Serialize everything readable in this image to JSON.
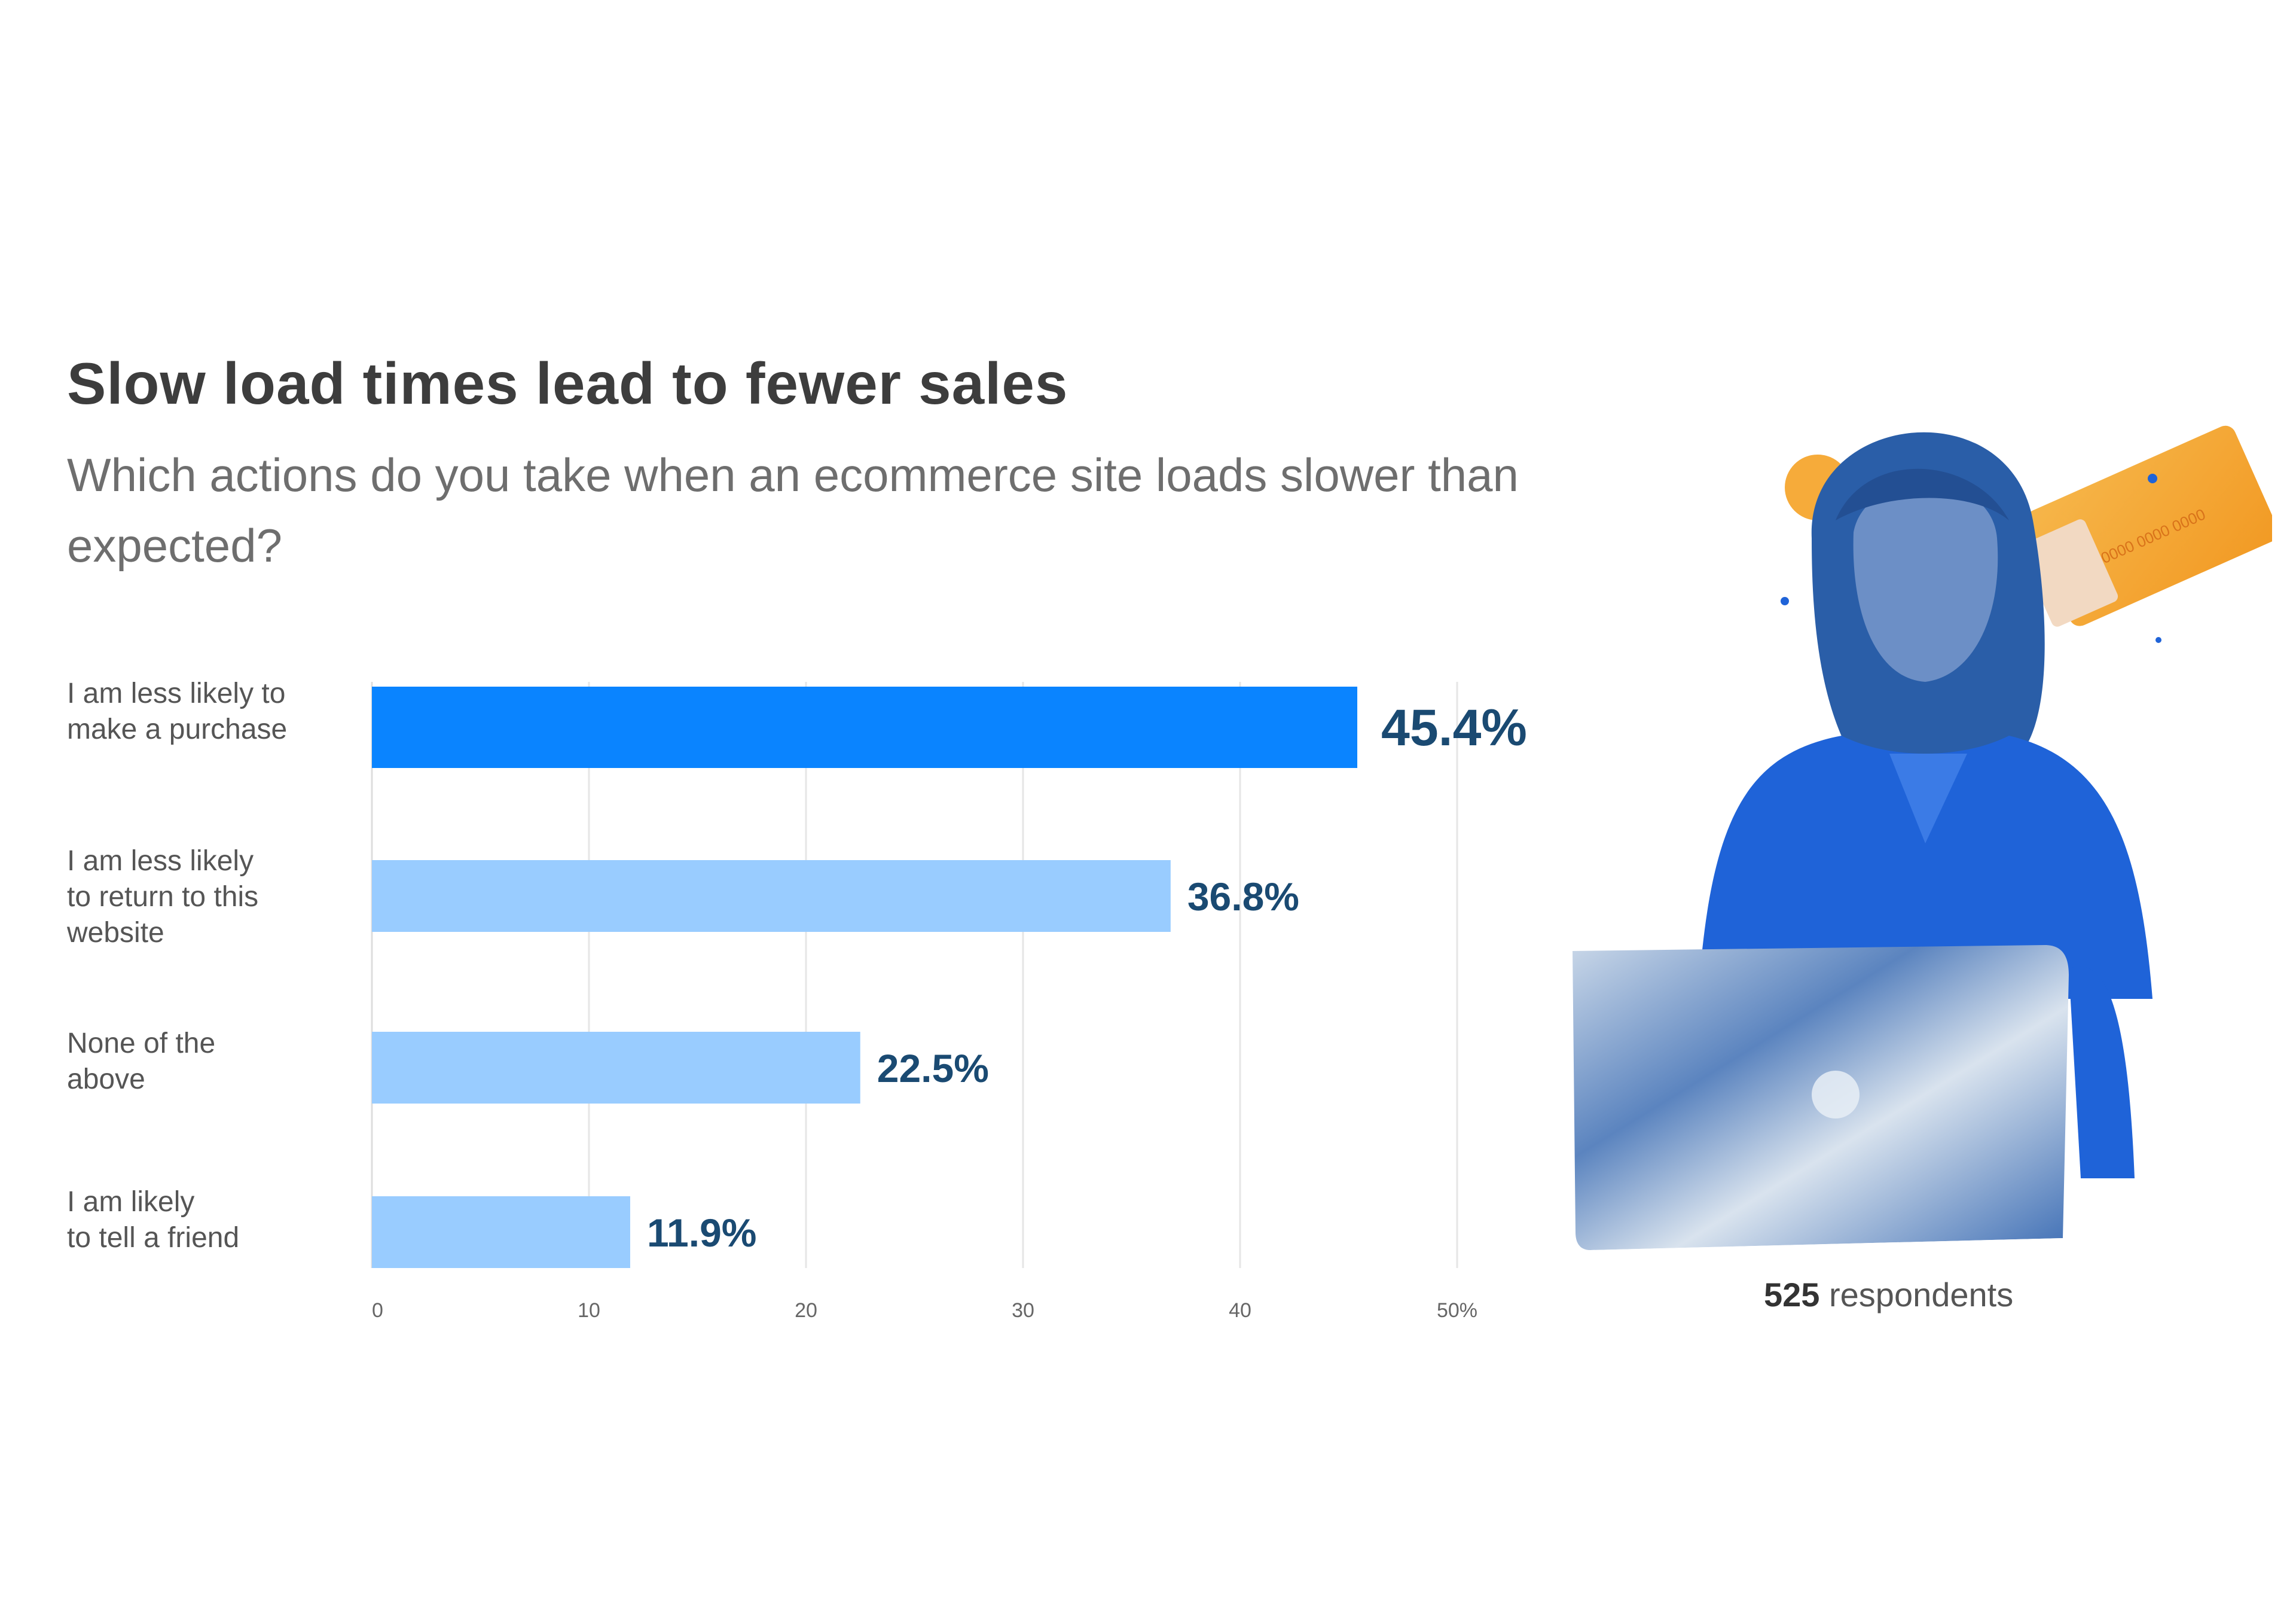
{
  "title": "Slow load times lead to fewer sales",
  "subtitle": "Which actions do you take when an ecommerce site loads slower than expected?",
  "respondents": {
    "count": "525",
    "label": "respondents"
  },
  "colors": {
    "highlight_bar": "#0a84ff",
    "bar": "#99ccff",
    "value_label": "#1a4a72",
    "grid": "#e6e6e6"
  },
  "photo": {
    "icon": "woman-with-laptop-illustration"
  },
  "chart_data": {
    "type": "bar",
    "orientation": "horizontal",
    "categories": [
      "I am less likely to\nmake a purchase",
      "I am less likely\nto return to this\nwebsite",
      "None of the\nabove",
      "I am likely\nto tell a friend"
    ],
    "values": [
      45.4,
      36.8,
      22.5,
      11.9
    ],
    "value_labels": [
      "45.4%",
      "36.8%",
      "22.5%",
      "11.9%"
    ],
    "highlight_index": 0,
    "xlim": [
      0,
      50
    ],
    "x_ticks": [
      0,
      10,
      20,
      30,
      40,
      50
    ],
    "x_tick_labels": [
      "0",
      "10",
      "20",
      "30",
      "40",
      "50%"
    ],
    "grid": true
  }
}
